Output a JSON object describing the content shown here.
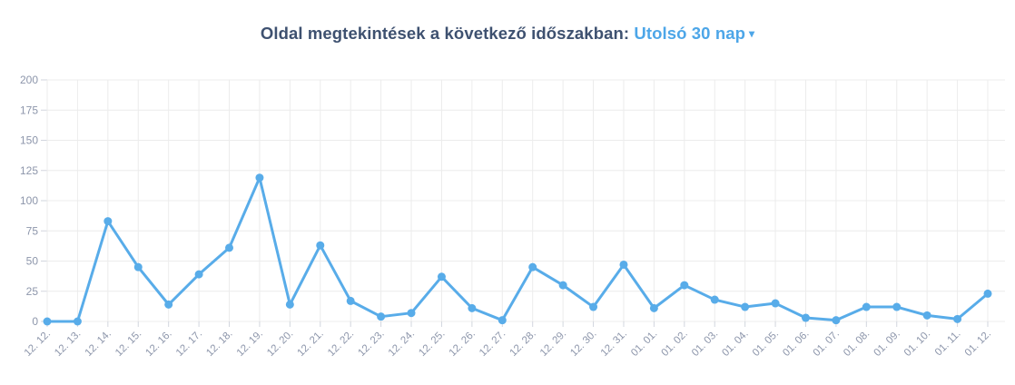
{
  "title": {
    "prefix": "Oldal megtekintések a következő időszakban:",
    "range_selector": "Utolsó 30 nap",
    "caret_icon": "▾"
  },
  "colors": {
    "line": "#58ace9",
    "point_fill": "#58ace9",
    "title_text": "#3e5170",
    "selector_text": "#4da6e8",
    "axis_label": "#8d96ab",
    "gridline": "#ececec",
    "tick": "#d2d6de",
    "background": "#ffffff"
  },
  "chart_data": {
    "type": "line",
    "title": "Oldal megtekintések a következő időszakban: Utolsó 30 nap",
    "categories": [
      "12. 12.",
      "12. 13.",
      "12. 14.",
      "12. 15.",
      "12. 16.",
      "12. 17.",
      "12. 18.",
      "12. 19.",
      "12. 20.",
      "12. 21.",
      "12. 22.",
      "12. 23.",
      "12. 24.",
      "12. 25.",
      "12. 26.",
      "12. 27.",
      "12. 28.",
      "12. 29.",
      "12. 30.",
      "12. 31.",
      "01. 01.",
      "01. 02.",
      "01. 03.",
      "01. 04.",
      "01. 05.",
      "01. 06.",
      "01. 07.",
      "01. 08.",
      "01. 09.",
      "01. 10.",
      "01. 11.",
      "01. 12."
    ],
    "values": [
      0,
      0,
      83,
      45,
      14,
      39,
      61,
      119,
      14,
      63,
      17,
      4,
      7,
      37,
      11,
      1,
      45,
      30,
      12,
      47,
      11,
      30,
      18,
      12,
      15,
      3,
      1,
      12,
      12,
      5,
      2,
      23
    ],
    "xlabel": "",
    "ylabel": "",
    "ylim": [
      0,
      200
    ],
    "ytick_step": 25,
    "yticks": [
      0,
      25,
      50,
      75,
      100,
      125,
      150,
      175,
      200
    ],
    "grid": true,
    "legend": false,
    "x_label_rotation_deg": -45
  }
}
